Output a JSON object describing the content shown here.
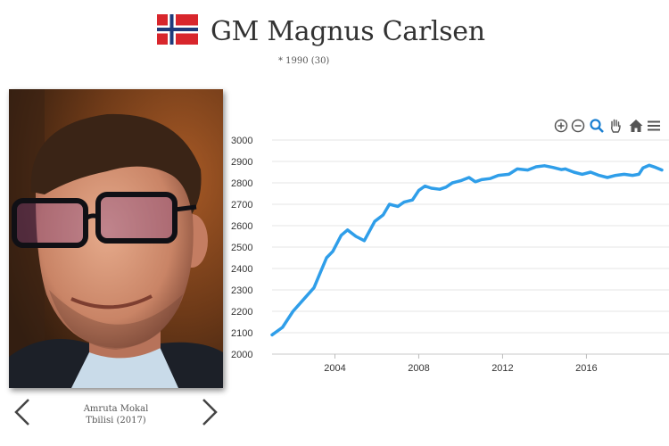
{
  "player": {
    "name": "GM Magnus Carlsen",
    "birth": "* 1990 (30)",
    "flag_icon": "norway-flag-icon"
  },
  "photo": {
    "caption_line1": "Amruta Mokal",
    "caption_line2": "Tbilisi (2017)",
    "prev_icon": "chevron-left-icon",
    "next_icon": "chevron-right-icon"
  },
  "toolbar": {
    "icons": [
      "zoom-in-icon",
      "zoom-out-icon",
      "magnifier-icon",
      "pan-hand-icon",
      "home-icon",
      "menu-icon"
    ]
  },
  "chart_data": {
    "type": "line",
    "title": "",
    "xlabel": "",
    "ylabel": "",
    "xlim": [
      2001,
      2019.6
    ],
    "ylim": [
      2000,
      3000
    ],
    "x_ticks": [
      "2004",
      "2008",
      "2012",
      "2016"
    ],
    "y_ticks": [
      "3000",
      "2900",
      "2800",
      "2700",
      "2600",
      "2500",
      "2400",
      "2300",
      "2200",
      "2100",
      "2000"
    ],
    "grid": true,
    "color": "#2f9ee9",
    "series": [
      {
        "x": [
          2001.0,
          2001.5,
          2002.0,
          2002.5,
          2003.0,
          2003.3,
          2003.6,
          2003.9,
          2004.3,
          2004.6,
          2005.0,
          2005.4,
          2005.9,
          2006.3,
          2006.6,
          2007.0,
          2007.3,
          2007.7,
          2008.0,
          2008.3,
          2008.6,
          2009.0,
          2009.3,
          2009.6,
          2010.0,
          2010.4,
          2010.7,
          2011.0,
          2011.4,
          2011.8,
          2012.3,
          2012.7,
          2013.2,
          2013.6,
          2014.0,
          2014.4,
          2014.8,
          2015.0,
          2015.4,
          2015.8,
          2016.2,
          2016.6,
          2017.0,
          2017.4,
          2017.8,
          2018.2,
          2018.5,
          2018.7,
          2019.0,
          2019.3,
          2019.6
        ],
        "y": [
          2090,
          2125,
          2200,
          2255,
          2310,
          2380,
          2450,
          2480,
          2555,
          2580,
          2550,
          2530,
          2620,
          2650,
          2700,
          2690,
          2710,
          2720,
          2765,
          2785,
          2775,
          2770,
          2780,
          2800,
          2810,
          2825,
          2805,
          2815,
          2820,
          2835,
          2840,
          2865,
          2860,
          2875,
          2880,
          2872,
          2862,
          2865,
          2850,
          2840,
          2850,
          2835,
          2825,
          2835,
          2840,
          2835,
          2840,
          2870,
          2882,
          2872,
          2860
        ]
      }
    ]
  }
}
